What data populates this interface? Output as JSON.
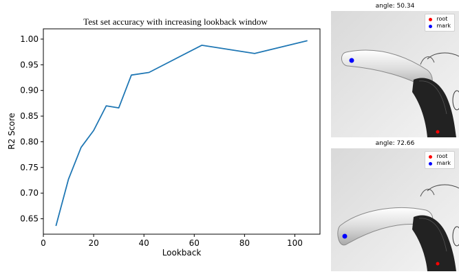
{
  "chart_data": {
    "type": "line",
    "title": "Test set accuracy with increasing lookback window",
    "xlabel": "Lookback",
    "ylabel": "R2 Score",
    "xlim": [
      0,
      110
    ],
    "ylim": [
      0.62,
      1.02
    ],
    "x_ticks": [
      0,
      20,
      40,
      60,
      80,
      100
    ],
    "y_ticks": [
      0.65,
      0.7,
      0.75,
      0.8,
      0.85,
      0.9,
      0.95,
      1.0
    ],
    "x_tick_labels": [
      "0",
      "20",
      "40",
      "60",
      "80",
      "100"
    ],
    "y_tick_labels": [
      "0.65",
      "0.70",
      "0.75",
      "0.80",
      "0.85",
      "0.90",
      "0.95",
      "1.00"
    ],
    "grid": false,
    "series": [
      {
        "color": "#1f77b4",
        "x": [
          5,
          10,
          15,
          20,
          25,
          30,
          35,
          42,
          63,
          84,
          105
        ],
        "y": [
          0.636,
          0.727,
          0.789,
          0.822,
          0.87,
          0.866,
          0.93,
          0.935,
          0.988,
          0.972,
          0.997
        ]
      }
    ]
  },
  "panels": [
    {
      "title": "angle: 50.34",
      "legend": [
        {
          "label": "root",
          "color": "#ff0000"
        },
        {
          "label": "mark",
          "color": "#0000ff"
        }
      ]
    },
    {
      "title": "angle: 72.66",
      "legend": [
        {
          "label": "root",
          "color": "#ff0000"
        },
        {
          "label": "mark",
          "color": "#0000ff"
        }
      ]
    }
  ]
}
